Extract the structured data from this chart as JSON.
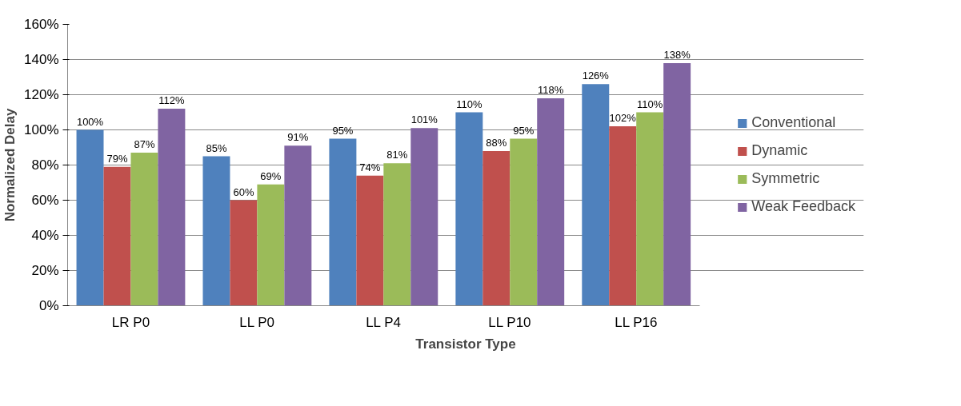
{
  "chart_data": {
    "type": "bar",
    "xlabel": "Transistor Type",
    "ylabel": "Normalized Delay",
    "categories": [
      "LR P0",
      "LL P0",
      "LL P4",
      "LL P10",
      "LL P16"
    ],
    "series": [
      {
        "name": "Conventional",
        "color": "#4f81bd",
        "values": [
          100,
          85,
          95,
          110,
          126
        ],
        "value_labels": [
          "100%",
          "85%",
          "95%",
          "110%",
          "126%"
        ]
      },
      {
        "name": "Dynamic",
        "color": "#c0504d",
        "values": [
          79,
          60,
          74,
          88,
          102
        ],
        "value_labels": [
          "79%",
          "60%",
          "74%",
          "88%",
          "102%"
        ]
      },
      {
        "name": "Symmetric",
        "color": "#9bbb59",
        "values": [
          87,
          69,
          81,
          95,
          110
        ],
        "value_labels": [
          "87%",
          "69%",
          "81%",
          "95%",
          "110%"
        ]
      },
      {
        "name": "Weak Feedback",
        "color": "#8064a2",
        "values": [
          112,
          91,
          101,
          118,
          138
        ],
        "value_labels": [
          "112%",
          "91%",
          "101%",
          "118%",
          "138%"
        ]
      }
    ],
    "ylim": [
      0,
      160
    ],
    "yticks": [
      {
        "value": 0,
        "label": "0%"
      },
      {
        "value": 20,
        "label": "20%"
      },
      {
        "value": 40,
        "label": "40%"
      },
      {
        "value": 60,
        "label": "60%"
      },
      {
        "value": 80,
        "label": "80%"
      },
      {
        "value": 100,
        "label": "100%"
      },
      {
        "value": 120,
        "label": "120%"
      },
      {
        "value": 140,
        "label": "140%"
      },
      {
        "value": 160,
        "label": "160%"
      }
    ],
    "grid": "y",
    "legend": "right"
  }
}
